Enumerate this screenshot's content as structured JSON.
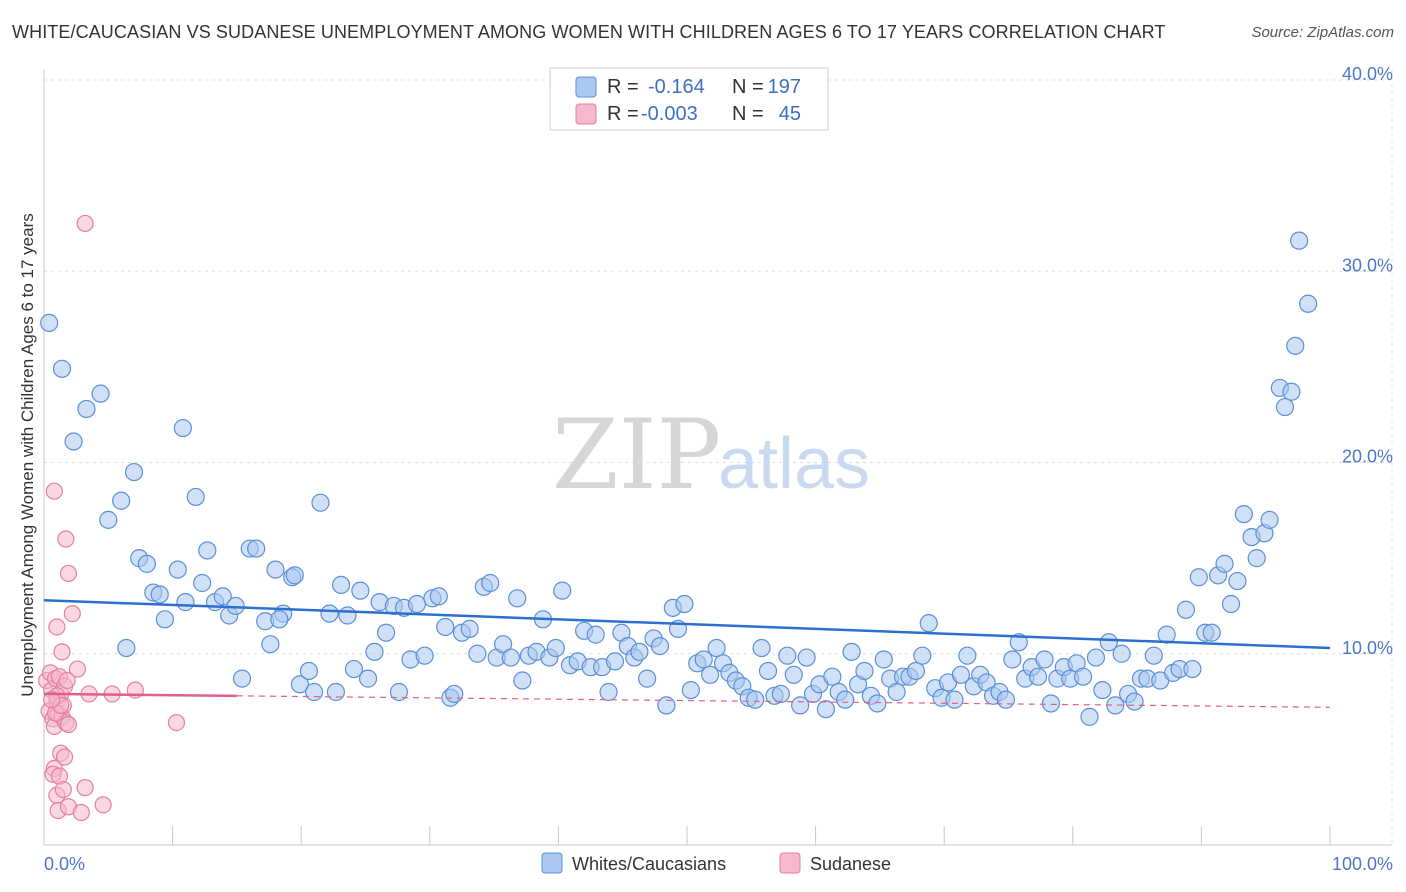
{
  "title": "WHITE/CAUCASIAN VS SUDANESE UNEMPLOYMENT AMONG WOMEN WITH CHILDREN AGES 6 TO 17 YEARS CORRELATION CHART",
  "source": "Source: ZipAtlas.com",
  "watermark": {
    "zip": "ZIP",
    "atlas": "atlas"
  },
  "colors": {
    "blue_fill": "#aac8f0",
    "blue_stroke": "#5b8fd6",
    "blue_line": "#2b6fcf",
    "pink_fill": "#f6b8cb",
    "pink_stroke": "#e57fa0",
    "pink_line": "#e0608a",
    "grid": "#dddddd",
    "tick_text": "#4a78c8"
  },
  "legend_top": {
    "rows": [
      {
        "r_label": "R =",
        "r_value": "-0.164",
        "n_label": "N =",
        "n_value": "197"
      },
      {
        "r_label": "R =",
        "r_value": "-0.003",
        "n_label": "N =",
        "n_value": "45"
      }
    ]
  },
  "legend_bottom": [
    "Whites/Caucasians",
    "Sudanese"
  ],
  "chart_data": {
    "type": "scatter",
    "title": "WHITE/CAUCASIAN VS SUDANESE UNEMPLOYMENT AMONG WOMEN WITH CHILDREN AGES 6 TO 17 YEARS CORRELATION CHART",
    "xlabel": "",
    "ylabel": "Unemployment Among Women with Children Ages 6 to 17 years",
    "xlim": [
      0,
      100
    ],
    "ylim": [
      0,
      40
    ],
    "x_tick_labels": [
      "0.0%",
      "100.0%"
    ],
    "y_ticks": [
      10,
      20,
      30,
      40
    ],
    "y_tick_labels": [
      "10.0%",
      "20.0%",
      "30.0%",
      "40.0%"
    ],
    "grid": true,
    "legend_position": "top-center",
    "series": [
      {
        "name": "Whites/Caucasians",
        "R": -0.164,
        "N": 197,
        "trend": {
          "x": [
            0,
            100
          ],
          "y": [
            12.8,
            10.3
          ]
        },
        "points": [
          [
            0.4,
            27.3
          ],
          [
            1.4,
            24.9
          ],
          [
            2.3,
            21.1
          ],
          [
            3.3,
            22.8
          ],
          [
            4.4,
            23.6
          ],
          [
            5.0,
            17.0
          ],
          [
            6.0,
            18.0
          ],
          [
            6.4,
            10.3
          ],
          [
            7.0,
            19.5
          ],
          [
            7.4,
            15.0
          ],
          [
            8.0,
            14.7
          ],
          [
            8.5,
            13.2
          ],
          [
            9.0,
            13.1
          ],
          [
            9.4,
            11.8
          ],
          [
            10.4,
            14.4
          ],
          [
            11.0,
            12.7
          ],
          [
            10.8,
            21.8
          ],
          [
            11.8,
            18.2
          ],
          [
            12.3,
            13.7
          ],
          [
            12.7,
            15.4
          ],
          [
            13.3,
            12.7
          ],
          [
            13.9,
            13.0
          ],
          [
            14.4,
            12.0
          ],
          [
            14.9,
            12.5
          ],
          [
            15.4,
            8.7
          ],
          [
            16.0,
            15.5
          ],
          [
            16.5,
            15.5
          ],
          [
            17.2,
            11.7
          ],
          [
            17.6,
            10.5
          ],
          [
            18.0,
            14.4
          ],
          [
            18.6,
            12.1
          ],
          [
            19.3,
            14.0
          ],
          [
            19.5,
            14.1
          ],
          [
            19.9,
            8.4
          ],
          [
            20.6,
            9.1
          ],
          [
            21.0,
            8.0
          ],
          [
            21.5,
            17.9
          ],
          [
            22.2,
            12.1
          ],
          [
            22.7,
            8.0
          ],
          [
            23.1,
            13.6
          ],
          [
            23.6,
            12.0
          ],
          [
            24.1,
            9.2
          ],
          [
            24.6,
            13.3
          ],
          [
            25.2,
            8.7
          ],
          [
            25.7,
            10.1
          ],
          [
            26.1,
            12.7
          ],
          [
            26.6,
            11.1
          ],
          [
            27.2,
            12.5
          ],
          [
            27.6,
            8.0
          ],
          [
            28.0,
            12.4
          ],
          [
            28.5,
            9.7
          ],
          [
            29.0,
            12.6
          ],
          [
            29.6,
            9.9
          ],
          [
            30.2,
            12.9
          ],
          [
            30.7,
            13.0
          ],
          [
            31.2,
            11.4
          ],
          [
            31.6,
            7.7
          ],
          [
            31.9,
            7.9
          ],
          [
            32.5,
            11.1
          ],
          [
            33.1,
            11.3
          ],
          [
            33.7,
            10.0
          ],
          [
            34.2,
            13.5
          ],
          [
            34.7,
            13.7
          ],
          [
            35.2,
            9.8
          ],
          [
            35.7,
            10.5
          ],
          [
            36.3,
            9.8
          ],
          [
            36.8,
            12.9
          ],
          [
            37.2,
            8.6
          ],
          [
            37.7,
            9.9
          ],
          [
            38.3,
            10.1
          ],
          [
            38.8,
            11.8
          ],
          [
            39.3,
            9.8
          ],
          [
            39.8,
            10.3
          ],
          [
            40.3,
            13.3
          ],
          [
            40.9,
            9.4
          ],
          [
            41.5,
            9.6
          ],
          [
            42.0,
            11.2
          ],
          [
            42.5,
            9.3
          ],
          [
            42.9,
            11.0
          ],
          [
            43.4,
            9.3
          ],
          [
            43.9,
            8.0
          ],
          [
            44.4,
            9.6
          ],
          [
            44.9,
            11.1
          ],
          [
            45.4,
            10.4
          ],
          [
            45.9,
            9.8
          ],
          [
            46.3,
            10.1
          ],
          [
            46.9,
            8.7
          ],
          [
            47.4,
            10.8
          ],
          [
            47.9,
            10.4
          ],
          [
            48.4,
            7.3
          ],
          [
            48.9,
            12.4
          ],
          [
            49.3,
            11.3
          ],
          [
            49.8,
            12.6
          ],
          [
            50.3,
            8.1
          ],
          [
            50.8,
            9.5
          ],
          [
            51.3,
            9.7
          ],
          [
            51.8,
            8.9
          ],
          [
            52.3,
            10.3
          ],
          [
            52.8,
            9.5
          ],
          [
            53.3,
            9.0
          ],
          [
            53.8,
            8.6
          ],
          [
            54.3,
            8.3
          ],
          [
            54.8,
            7.7
          ],
          [
            55.3,
            7.6
          ],
          [
            55.8,
            10.3
          ],
          [
            56.3,
            9.1
          ],
          [
            56.8,
            7.8
          ],
          [
            57.3,
            7.9
          ],
          [
            57.8,
            9.9
          ],
          [
            58.3,
            8.9
          ],
          [
            58.8,
            7.3
          ],
          [
            59.3,
            9.8
          ],
          [
            59.8,
            7.9
          ],
          [
            60.3,
            8.4
          ],
          [
            60.8,
            7.1
          ],
          [
            61.3,
            8.8
          ],
          [
            61.8,
            8.0
          ],
          [
            62.3,
            7.6
          ],
          [
            62.8,
            10.1
          ],
          [
            63.3,
            8.4
          ],
          [
            63.8,
            9.1
          ],
          [
            64.3,
            7.8
          ],
          [
            64.8,
            7.4
          ],
          [
            65.3,
            9.7
          ],
          [
            65.8,
            8.7
          ],
          [
            66.3,
            8.0
          ],
          [
            66.8,
            8.8
          ],
          [
            67.3,
            8.8
          ],
          [
            67.8,
            9.1
          ],
          [
            68.3,
            9.9
          ],
          [
            68.8,
            11.6
          ],
          [
            69.3,
            8.2
          ],
          [
            69.8,
            7.7
          ],
          [
            70.3,
            8.5
          ],
          [
            70.8,
            7.6
          ],
          [
            71.3,
            8.9
          ],
          [
            71.8,
            9.9
          ],
          [
            72.3,
            8.3
          ],
          [
            72.8,
            8.9
          ],
          [
            73.3,
            8.5
          ],
          [
            73.8,
            7.8
          ],
          [
            74.3,
            8.0
          ],
          [
            74.8,
            7.6
          ],
          [
            75.3,
            9.7
          ],
          [
            75.8,
            10.6
          ],
          [
            76.3,
            8.7
          ],
          [
            76.8,
            9.3
          ],
          [
            77.3,
            8.8
          ],
          [
            77.8,
            9.7
          ],
          [
            78.3,
            7.4
          ],
          [
            78.8,
            8.7
          ],
          [
            79.3,
            9.3
          ],
          [
            79.8,
            8.7
          ],
          [
            80.3,
            9.5
          ],
          [
            80.8,
            8.8
          ],
          [
            81.3,
            6.7
          ],
          [
            81.8,
            9.8
          ],
          [
            82.3,
            8.1
          ],
          [
            82.8,
            10.6
          ],
          [
            83.3,
            7.3
          ],
          [
            83.8,
            10.0
          ],
          [
            84.3,
            7.9
          ],
          [
            84.8,
            7.5
          ],
          [
            85.3,
            8.7
          ],
          [
            85.8,
            8.7
          ],
          [
            86.3,
            9.9
          ],
          [
            86.8,
            8.6
          ],
          [
            87.3,
            11.0
          ],
          [
            87.8,
            9.0
          ],
          [
            88.3,
            9.2
          ],
          [
            88.8,
            12.3
          ],
          [
            89.3,
            9.2
          ],
          [
            89.8,
            14.0
          ],
          [
            90.3,
            11.1
          ],
          [
            90.8,
            11.1
          ],
          [
            91.3,
            14.1
          ],
          [
            91.8,
            14.7
          ],
          [
            92.3,
            12.6
          ],
          [
            92.8,
            13.8
          ],
          [
            93.3,
            17.3
          ],
          [
            93.9,
            16.1
          ],
          [
            94.3,
            15.0
          ],
          [
            94.9,
            16.3
          ],
          [
            95.3,
            17.0
          ],
          [
            96.1,
            23.9
          ],
          [
            96.5,
            22.9
          ],
          [
            97.0,
            23.7
          ],
          [
            97.3,
            26.1
          ],
          [
            97.6,
            31.6
          ],
          [
            98.3,
            28.3
          ],
          [
            18.3,
            11.8
          ]
        ]
      },
      {
        "name": "Sudanese",
        "R": -0.003,
        "N": 45,
        "trend": {
          "x": [
            0,
            15
          ],
          "y": [
            7.9,
            7.8
          ]
        },
        "trend_dashed": {
          "x": [
            15,
            100
          ],
          "y": [
            7.8,
            7.2
          ]
        },
        "points": [
          [
            0.2,
            8.6
          ],
          [
            0.4,
            7.0
          ],
          [
            0.5,
            9.0
          ],
          [
            0.6,
            8.1
          ],
          [
            0.7,
            6.6
          ],
          [
            0.8,
            6.2
          ],
          [
            0.9,
            8.7
          ],
          [
            1.0,
            7.5
          ],
          [
            1.1,
            6.9
          ],
          [
            1.2,
            8.8
          ],
          [
            1.3,
            7.9
          ],
          [
            1.4,
            6.7
          ],
          [
            1.5,
            7.3
          ],
          [
            1.6,
            8.3
          ],
          [
            1.7,
            6.4
          ],
          [
            1.0,
            7.8
          ],
          [
            0.8,
            4.0
          ],
          [
            0.7,
            3.7
          ],
          [
            1.3,
            4.8
          ],
          [
            1.6,
            4.6
          ],
          [
            1.2,
            3.6
          ],
          [
            1.0,
            2.6
          ],
          [
            1.5,
            2.9
          ],
          [
            1.1,
            1.8
          ],
          [
            1.9,
            2.0
          ],
          [
            2.9,
            1.7
          ],
          [
            3.2,
            3.0
          ],
          [
            4.6,
            2.1
          ],
          [
            0.8,
            18.5
          ],
          [
            1.7,
            16.0
          ],
          [
            1.9,
            14.2
          ],
          [
            2.2,
            12.1
          ],
          [
            1.0,
            11.4
          ],
          [
            1.4,
            10.1
          ],
          [
            2.6,
            9.2
          ],
          [
            1.9,
            6.3
          ],
          [
            3.5,
            7.9
          ],
          [
            5.3,
            7.9
          ],
          [
            7.1,
            8.1
          ],
          [
            10.3,
            6.4
          ],
          [
            3.2,
            32.5
          ],
          [
            0.9,
            6.9
          ],
          [
            1.3,
            7.3
          ],
          [
            0.6,
            7.6
          ],
          [
            1.8,
            8.6
          ]
        ]
      }
    ]
  }
}
